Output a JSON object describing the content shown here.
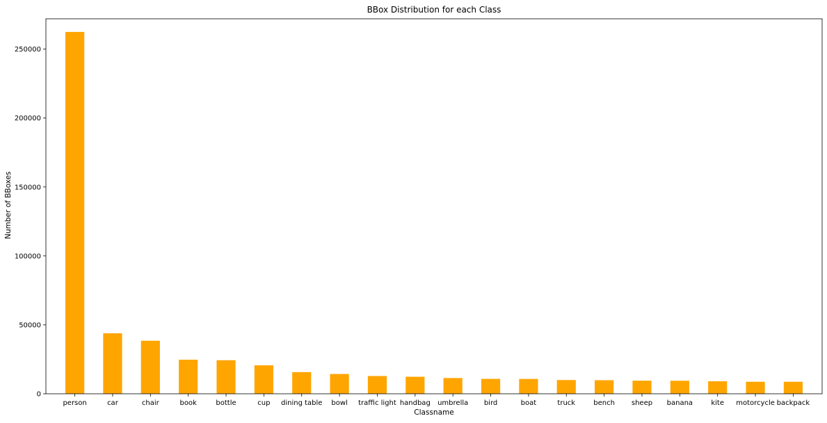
{
  "chart_data": {
    "type": "bar",
    "title": "BBox Distribution for each Class",
    "xlabel": "Classname",
    "ylabel": "Number of BBoxes",
    "categories": [
      "person",
      "car",
      "chair",
      "book",
      "bottle",
      "cup",
      "dining table",
      "bowl",
      "traffic light",
      "handbag",
      "umbrella",
      "bird",
      "boat",
      "truck",
      "bench",
      "sheep",
      "banana",
      "kite",
      "motorcycle",
      "backpack"
    ],
    "values": [
      262465,
      43867,
      38491,
      24715,
      24342,
      20650,
      15714,
      14358,
      12884,
      12354,
      11431,
      10806,
      10759,
      9973,
      9838,
      9509,
      9458,
      9076,
      8725,
      8720
    ],
    "ylim": [
      0,
      272000
    ],
    "yticks": [
      0,
      50000,
      100000,
      150000,
      200000,
      250000
    ],
    "grid": false,
    "colors": {
      "bar": "#FFA500",
      "axis": "#000000",
      "background": "#ffffff"
    }
  }
}
